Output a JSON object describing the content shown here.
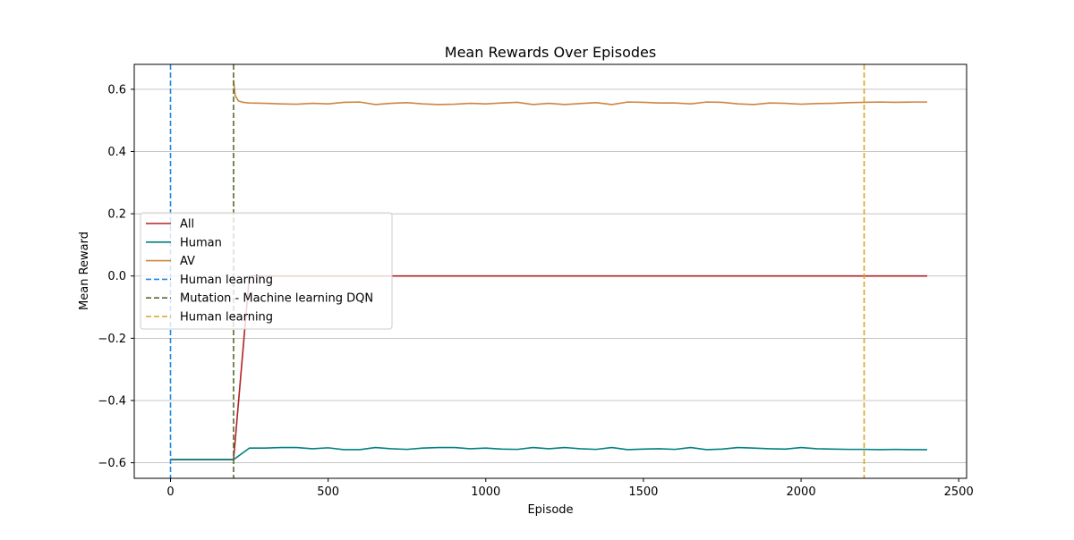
{
  "chart_data": {
    "type": "line",
    "title": "Mean Rewards Over Episodes",
    "xlabel": "Episode",
    "ylabel": "Mean Reward",
    "xlim": [
      -115,
      2525
    ],
    "ylim": [
      -0.65,
      0.68
    ],
    "xticks": [
      0,
      500,
      1000,
      1500,
      2000,
      2500
    ],
    "yticks": [
      -0.6,
      -0.4,
      -0.2,
      0.0,
      0.2,
      0.4,
      0.6
    ],
    "xtick_labels": [
      "0",
      "500",
      "1000",
      "1500",
      "2000",
      "2500"
    ],
    "ytick_labels": [
      "−0.6",
      "−0.4",
      "−0.2",
      "0.0",
      "0.2",
      "0.4",
      "0.6"
    ],
    "grid": "horizontal",
    "legend_position": "center-left",
    "series": [
      {
        "name": "All",
        "color": "#b22222",
        "style": "solid",
        "x": [
          0,
          200,
          250,
          300,
          400,
          500,
          700,
          900,
          1100,
          1300,
          1500,
          1700,
          1900,
          2100,
          2300,
          2400
        ],
        "y": [
          -0.59,
          -0.59,
          0.0,
          0.0,
          0.0,
          0.0,
          0.0,
          0.0,
          0.0,
          0.0,
          0.0,
          0.0,
          0.0,
          0.0,
          0.0,
          0.0
        ]
      },
      {
        "name": "Human",
        "color": "#008080",
        "style": "solid",
        "x": [
          0,
          200,
          250,
          300,
          350,
          400,
          450,
          500,
          550,
          600,
          650,
          700,
          750,
          800,
          850,
          900,
          950,
          1000,
          1050,
          1100,
          1150,
          1200,
          1250,
          1300,
          1350,
          1400,
          1450,
          1500,
          1550,
          1600,
          1650,
          1700,
          1750,
          1800,
          1850,
          1900,
          1950,
          2000,
          2050,
          2100,
          2150,
          2200,
          2250,
          2300,
          2350,
          2400
        ],
        "y": [
          -0.59,
          -0.59,
          -0.553,
          -0.553,
          -0.551,
          -0.551,
          -0.555,
          -0.552,
          -0.558,
          -0.558,
          -0.551,
          -0.555,
          -0.557,
          -0.553,
          -0.551,
          -0.551,
          -0.555,
          -0.553,
          -0.556,
          -0.557,
          -0.551,
          -0.555,
          -0.551,
          -0.555,
          -0.557,
          -0.551,
          -0.558,
          -0.556,
          -0.555,
          -0.557,
          -0.551,
          -0.558,
          -0.556,
          -0.551,
          -0.553,
          -0.555,
          -0.556,
          -0.551,
          -0.555,
          -0.556,
          -0.557,
          -0.557,
          -0.558,
          -0.557,
          -0.558,
          -0.558
        ]
      },
      {
        "name": "AV",
        "color": "#cd853f",
        "style": "solid",
        "x": [
          200,
          205,
          215,
          230,
          250,
          300,
          350,
          400,
          450,
          500,
          550,
          600,
          650,
          700,
          750,
          800,
          850,
          900,
          950,
          1000,
          1050,
          1100,
          1150,
          1200,
          1250,
          1300,
          1350,
          1400,
          1450,
          1500,
          1550,
          1600,
          1650,
          1700,
          1750,
          1800,
          1850,
          1900,
          1950,
          2000,
          2050,
          2100,
          2150,
          2200,
          2250,
          2300,
          2350,
          2400
        ],
        "y": [
          0.63,
          0.58,
          0.563,
          0.558,
          0.556,
          0.555,
          0.553,
          0.552,
          0.555,
          0.553,
          0.558,
          0.559,
          0.551,
          0.555,
          0.557,
          0.553,
          0.551,
          0.552,
          0.555,
          0.553,
          0.556,
          0.558,
          0.551,
          0.555,
          0.551,
          0.554,
          0.557,
          0.551,
          0.559,
          0.558,
          0.556,
          0.556,
          0.553,
          0.559,
          0.558,
          0.553,
          0.551,
          0.556,
          0.555,
          0.552,
          0.554,
          0.555,
          0.557,
          0.558,
          0.559,
          0.558,
          0.559,
          0.559
        ]
      }
    ],
    "vlines": [
      {
        "name": "Human learning",
        "x": 0,
        "color": "#1e88e5",
        "style": "dashed"
      },
      {
        "name": "Mutation - Machine learning DQN",
        "x": 200,
        "color": "#556b2f",
        "style": "dashed"
      },
      {
        "name": "Human learning",
        "x": 2200,
        "color": "#daa520",
        "style": "dashed"
      }
    ],
    "legend": [
      {
        "label": "All",
        "color": "#b22222",
        "style": "solid"
      },
      {
        "label": "Human",
        "color": "#008080",
        "style": "solid"
      },
      {
        "label": "AV",
        "color": "#cd853f",
        "style": "solid"
      },
      {
        "label": "Human learning",
        "color": "#1e88e5",
        "style": "dashed"
      },
      {
        "label": "Mutation - Machine learning DQN",
        "color": "#556b2f",
        "style": "dashed"
      },
      {
        "label": "Human learning",
        "color": "#daa520",
        "style": "dashed"
      }
    ]
  }
}
